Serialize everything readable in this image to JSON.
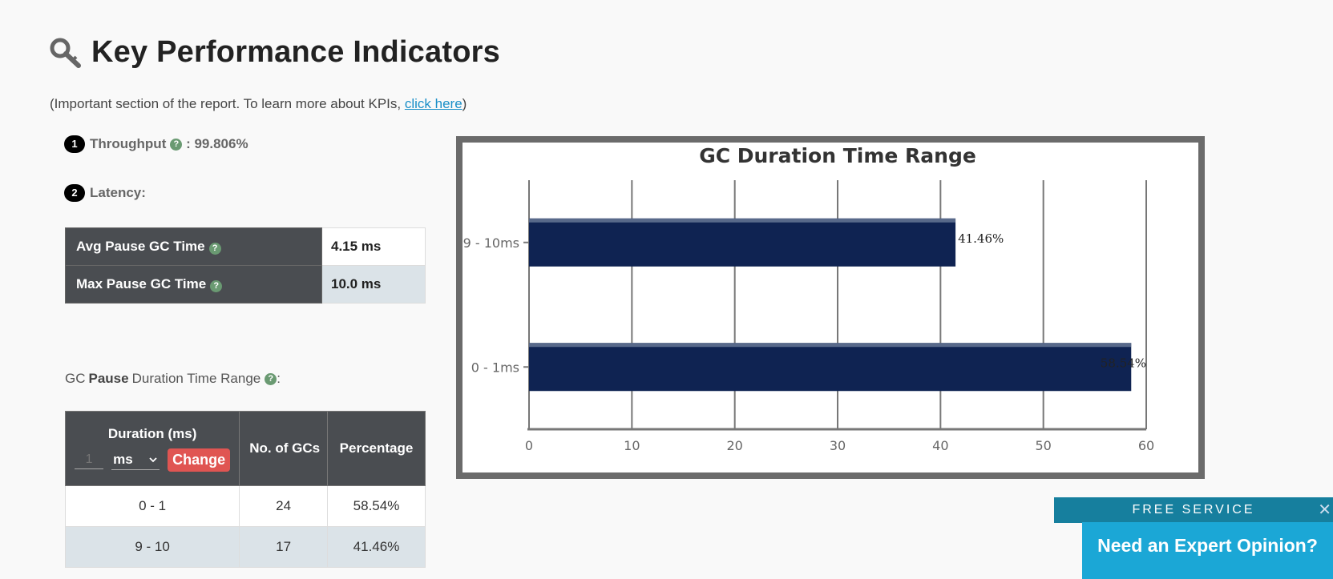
{
  "page": {
    "title": "Key Performance Indicators",
    "subtitle_prefix": "(Important section of the report. To learn more about KPIs, ",
    "subtitle_link": "click here",
    "subtitle_suffix": ")"
  },
  "kpi": {
    "throughput": {
      "number": "1",
      "label": "Throughput",
      "separator": " : ",
      "value": "99.806%"
    },
    "latency": {
      "number": "2",
      "label": "Latency:"
    }
  },
  "latency_table": [
    {
      "label": "Avg Pause GC Time",
      "value": "4.15 ms"
    },
    {
      "label": "Max Pause GC Time",
      "value": "10.0 ms"
    }
  ],
  "range_section": {
    "heading_pre": "GC",
    "heading_bold": "Pause",
    "heading_post": "Duration Time Range",
    "heading_colon": ":",
    "headers": {
      "duration": "Duration (ms)",
      "count": "No. of GCs",
      "percentage": "Percentage"
    },
    "input_placeholder": "1",
    "unit_selected": "ms",
    "change_label": "Change",
    "rows": [
      {
        "range": "0 - 1",
        "count": "24",
        "percentage": "58.54%"
      },
      {
        "range": "9 - 10",
        "count": "17",
        "percentage": "41.46%"
      }
    ]
  },
  "help_glyph": "?",
  "chart_data": {
    "type": "bar",
    "orientation": "horizontal",
    "title": "GC Duration Time Range",
    "categories": [
      "9 - 10ms",
      "0 - 1ms"
    ],
    "values": [
      41.46,
      58.54
    ],
    "data_labels": [
      "41.46%",
      "58.54%"
    ],
    "xlim": [
      0,
      60
    ],
    "xticks": [
      0,
      10,
      20,
      30,
      40,
      50,
      60
    ],
    "grid": true,
    "bar_color": "#0f2352"
  },
  "promo": {
    "banner": "FREE SERVICE",
    "close_glyph": "✕",
    "button": "Need an Expert Opinion?"
  }
}
